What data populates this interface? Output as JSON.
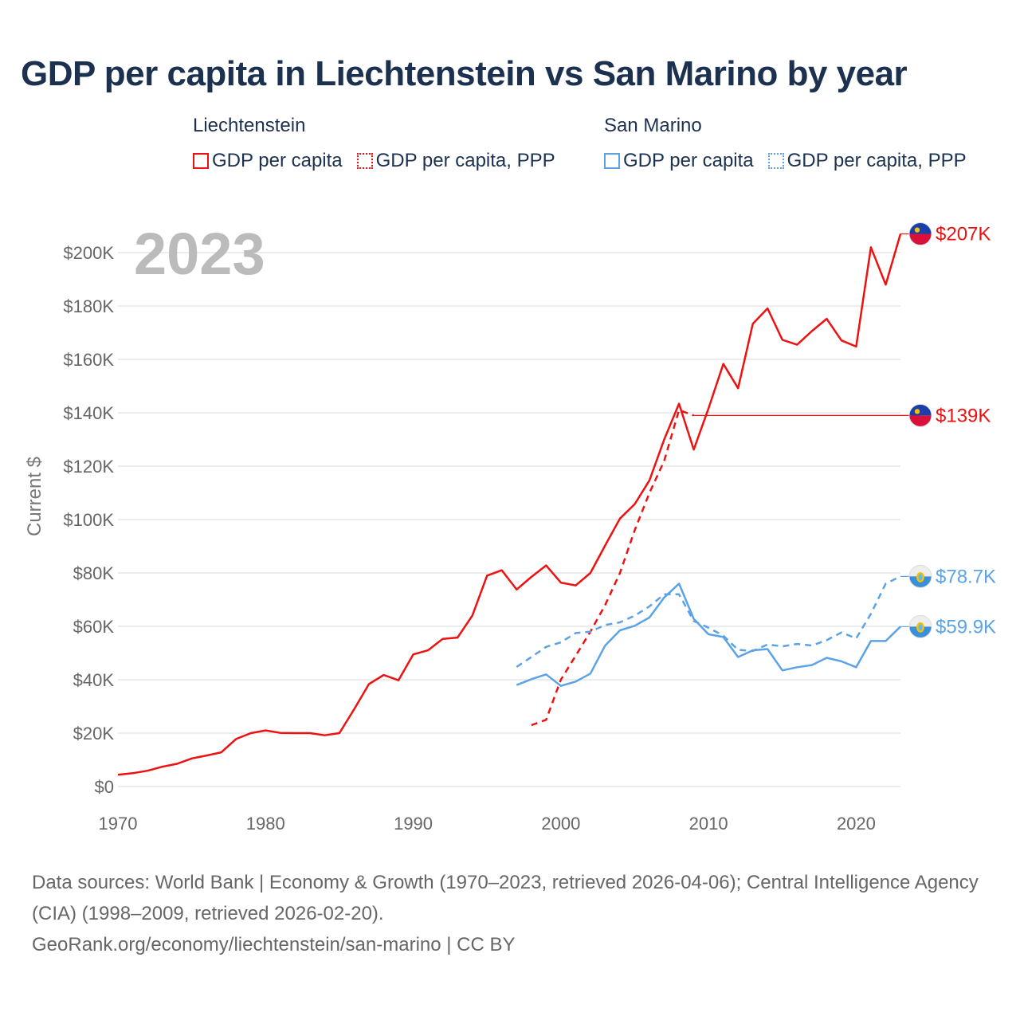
{
  "title": "GDP per capita in Liechtenstein vs San Marino by year",
  "legend": [
    {
      "country": "Liechtenstein",
      "color": "#ee1111",
      "items": [
        {
          "label": "GDP per capita",
          "style": "solid"
        },
        {
          "label": "GDP per capita, PPP",
          "style": "dotted"
        }
      ]
    },
    {
      "country": "San Marino",
      "color": "#5ba3e6",
      "items": [
        {
          "label": "GDP per capita",
          "style": "solid"
        },
        {
          "label": "GDP per capita, PPP",
          "style": "dotted"
        }
      ]
    }
  ],
  "chart_data": {
    "type": "line",
    "year_label": "2023",
    "ylabel": "Current $",
    "xlim": [
      1970,
      2023
    ],
    "ylim": [
      0,
      210000
    ],
    "y_ticks": [
      0,
      20000,
      40000,
      60000,
      80000,
      100000,
      120000,
      140000,
      160000,
      180000,
      200000
    ],
    "y_tick_labels": [
      "$0",
      "$20K",
      "$40K",
      "$60K",
      "$80K",
      "$100K",
      "$120K",
      "$140K",
      "$160K",
      "$180K",
      "$200K"
    ],
    "x_ticks": [
      1970,
      1980,
      1990,
      2000,
      2010,
      2020
    ],
    "x_tick_labels": [
      "1970",
      "1980",
      "1990",
      "2000",
      "2010",
      "2020"
    ],
    "series": [
      {
        "name": "Liechtenstein GDP per capita",
        "color": "#ee1111",
        "dash": false,
        "end_label": "$207K",
        "flag": "liechtenstein-flag-icon",
        "x": [
          1970,
          1971,
          1972,
          1973,
          1974,
          1975,
          1976,
          1977,
          1978,
          1979,
          1980,
          1981,
          1982,
          1983,
          1984,
          1985,
          1986,
          1987,
          1988,
          1989,
          1990,
          1991,
          1992,
          1993,
          1994,
          1995,
          1996,
          1997,
          1998,
          1999,
          2000,
          2001,
          2002,
          2003,
          2004,
          2005,
          2006,
          2007,
          2008,
          2009,
          2010,
          2011,
          2012,
          2013,
          2014,
          2015,
          2016,
          2017,
          2018,
          2019,
          2020,
          2021,
          2022,
          2023
        ],
        "y": [
          4400,
          5000,
          5900,
          7400,
          8500,
          10500,
          11600,
          12800,
          17800,
          20000,
          21000,
          20100,
          20000,
          20000,
          19200,
          20000,
          29000,
          38400,
          41800,
          39800,
          49500,
          51000,
          55300,
          55800,
          64000,
          79000,
          81000,
          73800,
          78500,
          82800,
          76400,
          75300,
          80000,
          90300,
          100400,
          105800,
          114700,
          130000,
          143400,
          126200,
          141600,
          158300,
          149200,
          173300,
          179100,
          167300,
          165500,
          170600,
          175200,
          167100,
          164800,
          202000,
          188000,
          207000
        ]
      },
      {
        "name": "Liechtenstein GDP per capita, PPP",
        "color": "#ee1111",
        "dash": true,
        "end_label": "$139K",
        "flag": "liechtenstein-flag-icon",
        "extend_to_end": true,
        "x": [
          1998,
          1999,
          2000,
          2001,
          2002,
          2003,
          2004,
          2005,
          2006,
          2007,
          2008,
          2009
        ],
        "y": [
          23000,
          25000,
          40000,
          49000,
          58000,
          68000,
          80000,
          96000,
          110000,
          122000,
          141000,
          139000
        ]
      },
      {
        "name": "San Marino GDP per capita",
        "color": "#5ba3e6",
        "dash": false,
        "end_label": "$59.9K",
        "flag": "san-marino-flag-icon",
        "x": [
          1997,
          1998,
          1999,
          2000,
          2001,
          2002,
          2003,
          2004,
          2005,
          2006,
          2007,
          2008,
          2009,
          2010,
          2011,
          2012,
          2013,
          2014,
          2015,
          2016,
          2017,
          2018,
          2019,
          2020,
          2021,
          2022,
          2023
        ],
        "y": [
          38000,
          40200,
          42000,
          37700,
          39300,
          42300,
          52800,
          58500,
          60200,
          63300,
          70800,
          76000,
          62800,
          57000,
          56000,
          48500,
          51000,
          51500,
          43500,
          44700,
          45500,
          48200,
          46900,
          44700,
          54500,
          54500,
          59900
        ]
      },
      {
        "name": "San Marino GDP per capita, PPP",
        "color": "#5ba3e6",
        "dash": true,
        "end_label": "$78.7K",
        "flag": "san-marino-flag-icon",
        "x": [
          1997,
          1998,
          1999,
          2000,
          2001,
          2002,
          2003,
          2004,
          2005,
          2006,
          2007,
          2008,
          2009,
          2010,
          2011,
          2012,
          2013,
          2014,
          2015,
          2016,
          2017,
          2018,
          2019,
          2020,
          2021,
          2022,
          2023
        ],
        "y": [
          44800,
          48500,
          52300,
          54000,
          57500,
          58000,
          60500,
          61500,
          64000,
          67500,
          72000,
          72000,
          62000,
          59500,
          56500,
          51200,
          50800,
          53200,
          52500,
          53400,
          52800,
          54800,
          57700,
          55500,
          64700,
          76000,
          78700
        ]
      }
    ]
  },
  "footer": {
    "sources": "Data sources: World Bank | Economy & Growth (1970–2023, retrieved 2026-04-06); Central Intelligence Agency (CIA) (1998–2009, retrieved 2026-02-20).",
    "link": "GeoRank.org/economy/liechtenstein/san-marino | CC BY"
  }
}
